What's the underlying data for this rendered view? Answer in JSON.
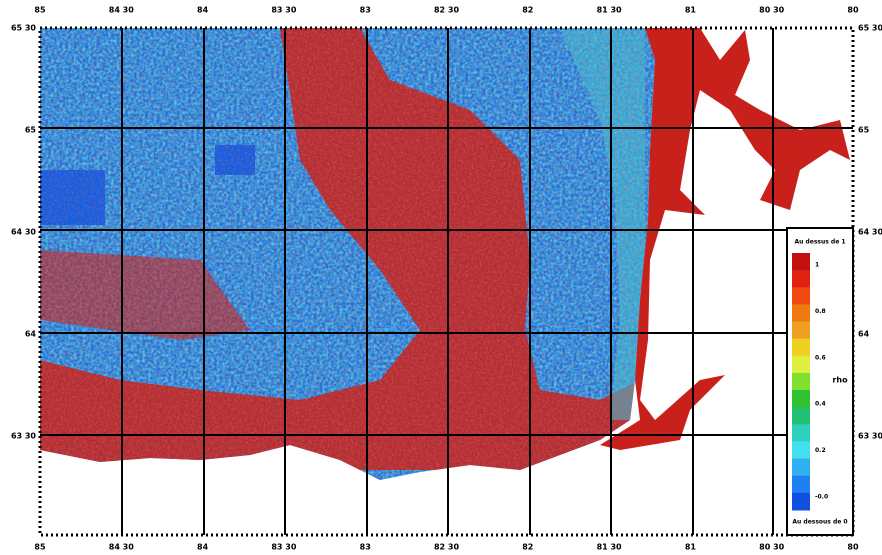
{
  "map": {
    "top_labels": [
      "85",
      "84 30",
      "84",
      "83 30",
      "83",
      "82 30",
      "82",
      "81 30",
      "81",
      "80 30",
      "80"
    ],
    "bottom_labels": [
      "85",
      "84 30",
      "84",
      "83 30",
      "83",
      "82 30",
      "82",
      "81 30",
      "81",
      "80 30",
      "80"
    ],
    "left_labels": [
      "65 30",
      "65",
      "64 30",
      "64",
      "63 30"
    ],
    "right_labels": [
      "65 30",
      "65",
      "64 30",
      "64",
      "63 30"
    ],
    "legend": {
      "title": "Au dessus de 1",
      "ticks": [
        "1",
        "0.8",
        "0.6",
        "0.4",
        "0.2",
        "-0.0"
      ],
      "bottom": "Au dessous de 0",
      "axis_label": "rho"
    }
  }
}
